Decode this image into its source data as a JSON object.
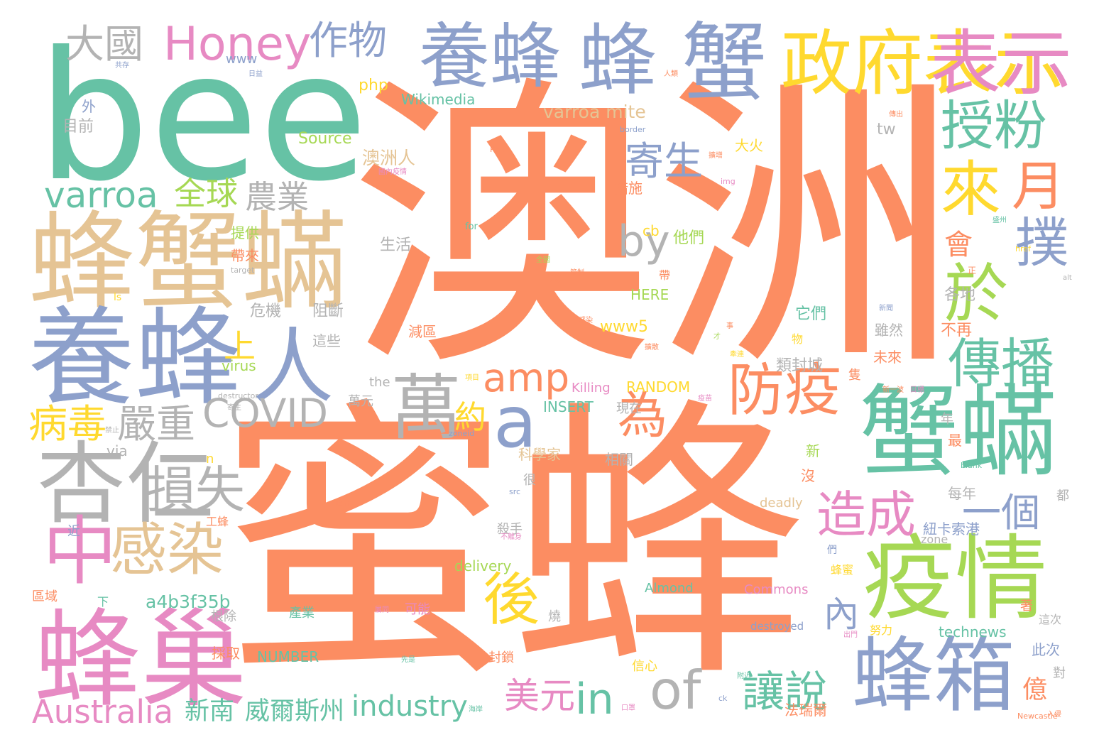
{
  "palette": {
    "coral": "#fc8d62",
    "teal": "#66c2a5",
    "periwinkle": "#8da0cb",
    "pink": "#e78ac3",
    "lime": "#a6d854",
    "yellow": "#ffd92f",
    "tan": "#e5c494",
    "gray": "#b3b3b3"
  },
  "words": [
    {
      "id": "w1",
      "text": "澳洲",
      "color": "coral"
    },
    {
      "id": "w2",
      "text": "蜜蜂",
      "color": "coral"
    },
    {
      "id": "w3",
      "text": "bee",
      "color": "teal"
    },
    {
      "id": "w4",
      "text": "蜂蟹蟎",
      "color": "tan"
    },
    {
      "id": "w5",
      "text": "養蜂",
      "color": "periwinkle"
    },
    {
      "id": "w6",
      "text": "養蜂",
      "color": "periwinkle"
    },
    {
      "id": "w7",
      "text": "蜂",
      "color": "periwinkle"
    },
    {
      "id": "w8",
      "text": "蟹",
      "color": "periwinkle"
    },
    {
      "id": "w9",
      "text": "政府表示",
      "color": "yellow"
    },
    {
      "id": "w10",
      "text": "表示",
      "color": "pink"
    },
    {
      "id": "w11",
      "text": "蜂巢",
      "color": "pink"
    },
    {
      "id": "w12",
      "text": "蟹蟎",
      "color": "teal"
    },
    {
      "id": "w13",
      "text": "疫情",
      "color": "lime"
    },
    {
      "id": "w14",
      "text": "蜂箱",
      "color": "periwinkle"
    },
    {
      "id": "w15",
      "text": "杏仁",
      "color": "gray"
    },
    {
      "id": "w16",
      "text": "人",
      "color": "periwinkle"
    },
    {
      "id": "w17",
      "text": "中",
      "color": "pink"
    },
    {
      "id": "w18",
      "text": "授粉",
      "color": "teal"
    },
    {
      "id": "w19",
      "text": "來",
      "color": "yellow"
    },
    {
      "id": "w20",
      "text": "月",
      "color": "coral"
    },
    {
      "id": "w21",
      "text": "於",
      "color": "lime"
    },
    {
      "id": "w22",
      "text": "撲",
      "color": "periwinkle"
    },
    {
      "id": "w23",
      "text": "傳播",
      "color": "teal"
    },
    {
      "id": "w24",
      "text": "Honey",
      "color": "pink"
    },
    {
      "id": "w25",
      "text": "作物",
      "color": "periwinkle"
    },
    {
      "id": "w26",
      "text": "大國",
      "color": "gray"
    },
    {
      "id": "w27",
      "text": "萬",
      "color": "gray"
    },
    {
      "id": "w28",
      "text": "a",
      "color": "periwinkle"
    },
    {
      "id": "w29",
      "text": "防疫",
      "color": "coral"
    },
    {
      "id": "w30",
      "text": "為",
      "color": "coral"
    },
    {
      "id": "w31",
      "text": "感染",
      "color": "tan"
    },
    {
      "id": "w32",
      "text": "損失",
      "color": "gray"
    },
    {
      "id": "w33",
      "text": "後",
      "color": "yellow"
    },
    {
      "id": "w34",
      "text": "造成",
      "color": "pink"
    },
    {
      "id": "w35",
      "text": "一個",
      "color": "periwinkle"
    },
    {
      "id": "w36",
      "text": "寄生",
      "color": "periwinkle"
    },
    {
      "id": "w37",
      "text": "varroa",
      "color": "teal"
    },
    {
      "id": "w38",
      "text": "全球",
      "color": "lime"
    },
    {
      "id": "w39",
      "text": "農業",
      "color": "gray"
    },
    {
      "id": "w40",
      "text": "by",
      "color": "gray"
    },
    {
      "id": "w41",
      "text": "amp",
      "color": "coral"
    },
    {
      "id": "w42",
      "text": "COVID",
      "color": "gray"
    },
    {
      "id": "w43",
      "text": "病毒",
      "color": "yellow"
    },
    {
      "id": "w44",
      "text": "嚴重",
      "color": "gray"
    },
    {
      "id": "w45",
      "text": "of",
      "color": "gray"
    },
    {
      "id": "w46",
      "text": "in",
      "color": "teal"
    },
    {
      "id": "w47",
      "text": "Australia",
      "color": "pink"
    },
    {
      "id": "w48",
      "text": "industry",
      "color": "teal"
    },
    {
      "id": "w49",
      "text": "美元",
      "color": "pink"
    },
    {
      "id": "w50",
      "text": "讓說",
      "color": "teal"
    },
    {
      "id": "w51",
      "text": "內",
      "color": "periwinkle"
    },
    {
      "id": "w52",
      "text": "上",
      "color": "yellow"
    },
    {
      "id": "w53",
      "text": "約",
      "color": "yellow"
    },
    {
      "id": "w54",
      "text": "會",
      "color": "coral"
    },
    {
      "id": "w55",
      "text": "新南",
      "color": "teal"
    },
    {
      "id": "w56",
      "text": "威爾斯州",
      "color": "teal"
    },
    {
      "id": "w57",
      "text": "varroa mite",
      "color": "tan"
    },
    {
      "id": "w58",
      "text": "a4b3f35b",
      "color": "teal"
    },
    {
      "id": "w59",
      "text": "澳洲人",
      "color": "tan"
    },
    {
      "id": "w60",
      "text": "億",
      "color": "coral"
    },
    {
      "id": "w61",
      "text": "Wikimedia",
      "color": "teal"
    },
    {
      "id": "w62",
      "text": "Source",
      "color": "lime"
    },
    {
      "id": "w63",
      "text": "www",
      "color": "periwinkle"
    },
    {
      "id": "w64",
      "text": "php",
      "color": "yellow"
    },
    {
      "id": "w65",
      "text": "外",
      "color": "periwinkle"
    },
    {
      "id": "w66",
      "text": "目前",
      "color": "gray"
    },
    {
      "id": "w67",
      "text": "tw",
      "color": "gray"
    },
    {
      "id": "w68",
      "text": "大火",
      "color": "yellow"
    },
    {
      "id": "w69",
      "text": "措施",
      "color": "coral"
    },
    {
      "id": "w70",
      "text": "cb",
      "color": "yellow"
    },
    {
      "id": "w71",
      "text": "生活",
      "color": "gray"
    },
    {
      "id": "w72",
      "text": "他們",
      "color": "lime"
    },
    {
      "id": "w73",
      "text": "提供",
      "color": "lime"
    },
    {
      "id": "w74",
      "text": "帶來",
      "color": "coral"
    },
    {
      "id": "w75",
      "text": "to",
      "color": "coral"
    },
    {
      "id": "w76",
      "text": "HERE",
      "color": "lime"
    },
    {
      "id": "w77",
      "text": "危機",
      "color": "gray"
    },
    {
      "id": "w78",
      "text": "阻斷",
      "color": "gray"
    },
    {
      "id": "w79",
      "text": "它們",
      "color": "teal"
    },
    {
      "id": "w80",
      "text": "各地",
      "color": "gray"
    },
    {
      "id": "w81",
      "text": "www5",
      "color": "yellow"
    },
    {
      "id": "w82",
      "text": "不再",
      "color": "coral"
    },
    {
      "id": "w83",
      "text": "這些",
      "color": "gray"
    },
    {
      "id": "w84",
      "text": "減區",
      "color": "coral"
    },
    {
      "id": "w85",
      "text": "雖然",
      "color": "gray"
    },
    {
      "id": "w86",
      "text": "virus",
      "color": "lime"
    },
    {
      "id": "w87",
      "text": "類封城",
      "color": "gray"
    },
    {
      "id": "w88",
      "text": "未來",
      "color": "coral"
    },
    {
      "id": "w89",
      "text": "the",
      "color": "gray"
    },
    {
      "id": "w90",
      "text": "Killing",
      "color": "pink"
    },
    {
      "id": "w91",
      "text": "RANDOM",
      "color": "yellow"
    },
    {
      "id": "w92",
      "text": "INSERT",
      "color": "teal"
    },
    {
      "id": "w93",
      "text": "現在",
      "color": "gray"
    },
    {
      "id": "w94",
      "text": "萬元",
      "color": "gray"
    },
    {
      "id": "w95",
      "text": "via",
      "color": "gray"
    },
    {
      "id": "w96",
      "text": "科學家",
      "color": "tan"
    },
    {
      "id": "w97",
      "text": "相關",
      "color": "gray"
    },
    {
      "id": "w98",
      "text": "新",
      "color": "lime"
    },
    {
      "id": "w99",
      "text": "沒",
      "color": "coral"
    },
    {
      "id": "w100",
      "text": "最",
      "color": "coral"
    },
    {
      "id": "w101",
      "text": "年",
      "color": "gray"
    },
    {
      "id": "w102",
      "text": "每年",
      "color": "gray"
    },
    {
      "id": "w103",
      "text": "很",
      "color": "gray"
    },
    {
      "id": "w104",
      "text": "n",
      "color": "yellow"
    },
    {
      "id": "w105",
      "text": "deadly",
      "color": "tan"
    },
    {
      "id": "w106",
      "text": "工蜂",
      "color": "coral"
    },
    {
      "id": "w107",
      "text": "近",
      "color": "periwinkle"
    },
    {
      "id": "w108",
      "text": "殺手",
      "color": "gray"
    },
    {
      "id": "w109",
      "text": "紐卡索港",
      "color": "periwinkle"
    },
    {
      "id": "w110",
      "text": "delivery",
      "color": "lime"
    },
    {
      "id": "w111",
      "text": "zone",
      "color": "gray"
    },
    {
      "id": "w112",
      "text": "Almond",
      "color": "teal"
    },
    {
      "id": "w113",
      "text": "Commons",
      "color": "pink"
    },
    {
      "id": "w114",
      "text": "區域",
      "color": "coral"
    },
    {
      "id": "w115",
      "text": "下",
      "color": "teal"
    },
    {
      "id": "w116",
      "text": "可能",
      "color": "pink"
    },
    {
      "id": "w117",
      "text": "產業",
      "color": "teal"
    },
    {
      "id": "w118",
      "text": "根除",
      "color": "gray"
    },
    {
      "id": "w119",
      "text": "燒",
      "color": "gray"
    },
    {
      "id": "w120",
      "text": "destroyed",
      "color": "periwinkle"
    },
    {
      "id": "w121",
      "text": "technews",
      "color": "teal"
    },
    {
      "id": "w122",
      "text": "採取",
      "color": "coral"
    },
    {
      "id": "w123",
      "text": "NUMBER",
      "color": "teal"
    },
    {
      "id": "w124",
      "text": "努力",
      "color": "yellow"
    },
    {
      "id": "w125",
      "text": "此次",
      "color": "periwinkle"
    },
    {
      "id": "w126",
      "text": "封鎖",
      "color": "coral"
    },
    {
      "id": "w127",
      "text": "信心",
      "color": "yellow"
    },
    {
      "id": "w128",
      "text": "法瑞爾",
      "color": "coral"
    },
    {
      "id": "w129",
      "text": "對",
      "color": "gray"
    },
    {
      "id": "w130",
      "text": "著",
      "color": "coral"
    },
    {
      "id": "w131",
      "text": "這次",
      "color": "gray"
    },
    {
      "id": "w132",
      "text": "都",
      "color": "gray"
    },
    {
      "id": "w133",
      "text": "蜂蜜",
      "color": "yellow"
    },
    {
      "id": "w134",
      "text": "隻",
      "color": "coral"
    },
    {
      "id": "w135",
      "text": "帶",
      "color": "coral"
    },
    {
      "id": "w136",
      "text": "物",
      "color": "yellow"
    },
    {
      "id": "w137",
      "text": "們",
      "color": "periwinkle"
    },
    {
      "id": "w138",
      "text": "for",
      "color": "teal"
    },
    {
      "id": "w139",
      "text": "border",
      "color": "periwinkle"
    },
    {
      "id": "w140",
      "text": "Port",
      "color": "coral"
    },
    {
      "id": "w141",
      "text": "img",
      "color": "pink"
    },
    {
      "id": "w142",
      "text": "ls",
      "color": "yellow"
    },
    {
      "id": "w143",
      "text": "target",
      "color": "gray"
    },
    {
      "id": "w144",
      "text": "blank",
      "color": "teal"
    },
    {
      "id": "w145",
      "text": "href",
      "color": "yellow"
    },
    {
      "id": "w146",
      "text": "src",
      "color": "periwinkle"
    },
    {
      "id": "w147",
      "text": "zoneid",
      "color": "periwinkle"
    },
    {
      "id": "w148",
      "text": "destructor",
      "color": "gray"
    },
    {
      "id": "w149",
      "text": "ck",
      "color": "periwinkle"
    },
    {
      "id": "w150",
      "text": "Newcastle",
      "color": "coral"
    },
    {
      "id": "w151",
      "text": "alt",
      "color": "gray"
    },
    {
      "id": "w152",
      "text": "共存",
      "color": "periwinkle"
    },
    {
      "id": "w153",
      "text": "日益",
      "color": "periwinkle"
    },
    {
      "id": "w154",
      "text": "傳出",
      "color": "coral"
    },
    {
      "id": "w155",
      "text": "人類",
      "color": "coral"
    },
    {
      "id": "w156",
      "text": "國內疫情",
      "color": "pink"
    },
    {
      "id": "w157",
      "text": "擴增",
      "color": "coral"
    },
    {
      "id": "w158",
      "text": "盛州",
      "color": "teal"
    },
    {
      "id": "w159",
      "text": "正",
      "color": "coral"
    },
    {
      "id": "w160",
      "text": "不離身",
      "color": "pink"
    },
    {
      "id": "w161",
      "text": "新一波",
      "color": "coral"
    },
    {
      "id": "w162",
      "text": "目標",
      "color": "pink"
    },
    {
      "id": "w163",
      "text": "寄主",
      "color": "gray"
    },
    {
      "id": "w164",
      "text": "政府",
      "color": "coral"
    },
    {
      "id": "w165",
      "text": "口罩",
      "color": "pink"
    },
    {
      "id": "w166",
      "text": "海岸",
      "color": "teal"
    },
    {
      "id": "w167",
      "text": "附近",
      "color": "teal"
    },
    {
      "id": "w168",
      "text": "先是",
      "color": "teal"
    },
    {
      "id": "w169",
      "text": "禁止",
      "color": "gray"
    },
    {
      "id": "w170",
      "text": "管制",
      "color": "coral"
    },
    {
      "id": "w171",
      "text": "屬同",
      "color": "pink"
    },
    {
      "id": "w172",
      "text": "感染",
      "color": "coral"
    },
    {
      "id": "w173",
      "text": "出門",
      "color": "pink"
    },
    {
      "id": "w174",
      "text": "疫苗",
      "color": "pink"
    },
    {
      "id": "w175",
      "text": "全國",
      "color": "lime"
    },
    {
      "id": "w176",
      "text": "項目",
      "color": "yellow"
    },
    {
      "id": "w177",
      "text": "牽連",
      "color": "yellow"
    },
    {
      "id": "w178",
      "text": "入侵",
      "color": "coral"
    },
    {
      "id": "w179",
      "text": "擴散",
      "color": "coral"
    },
    {
      "id": "w180",
      "text": "新聞",
      "color": "periwinkle"
    },
    {
      "id": "w181",
      "text": "事",
      "color": "coral"
    },
    {
      "id": "w182",
      "text": "才",
      "color": "lime"
    }
  ]
}
